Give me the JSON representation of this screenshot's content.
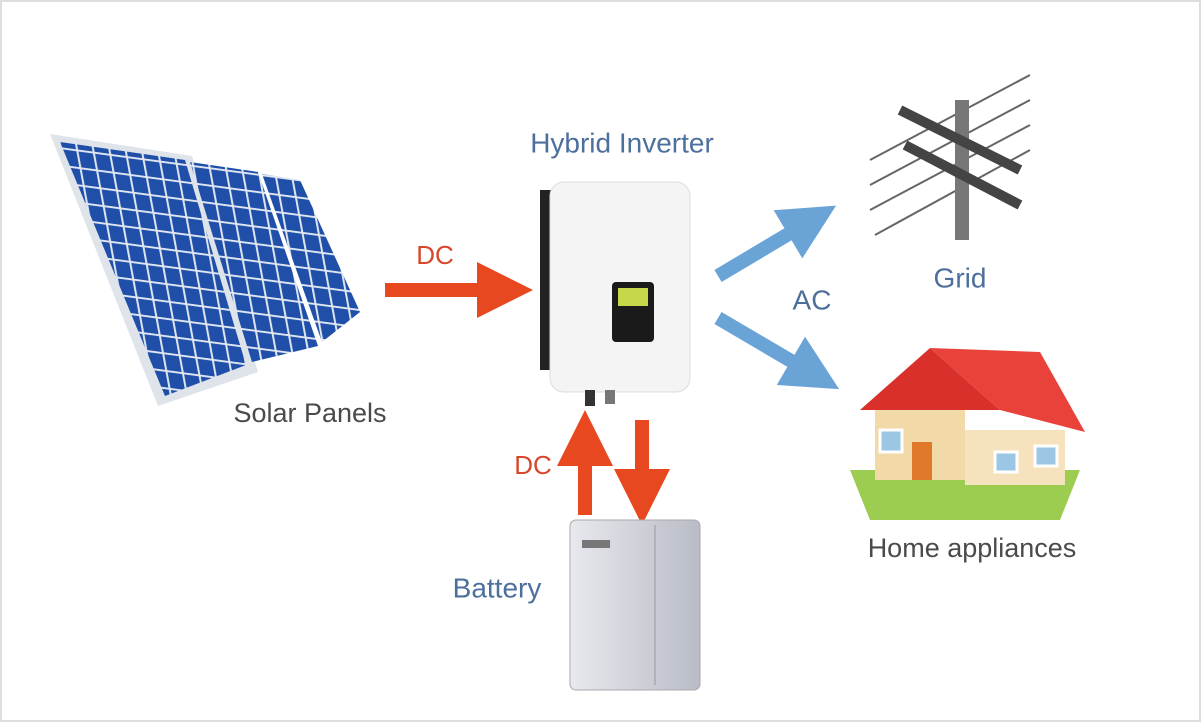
{
  "nodes": [
    {
      "label": "Hybrid Inverter"
    },
    {
      "label": "Solar Panels"
    },
    {
      "label": "Grid"
    },
    {
      "label": "Home appliances"
    },
    {
      "label": "Battery"
    }
  ],
  "edges": [
    {
      "label": "DC"
    },
    {
      "label": "AC"
    },
    {
      "label": "DC"
    }
  ]
}
